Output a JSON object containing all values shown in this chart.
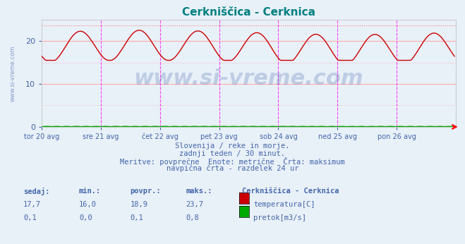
{
  "title": "Cerkniščica - Cerknica",
  "title_color": "#008080",
  "bg_color": "#e8f0f8",
  "plot_bg_color": "#e8f0f8",
  "ylabel": "",
  "xlabel": "",
  "ylim": [
    0,
    25
  ],
  "yticks": [
    0,
    10,
    20
  ],
  "x_labels": [
    "tor 20 avg",
    "sre 21 avg",
    "čet 22 avg",
    "pet 23 avg",
    "sob 24 avg",
    "ned 25 avg",
    "pon 26 avg"
  ],
  "n_points": 336,
  "temp_min": 16.0,
  "temp_max": 23.7,
  "temp_avg": 18.9,
  "temp_last": 17.7,
  "flow_min": 0.0,
  "flow_max": 0.8,
  "flow_avg": 0.1,
  "flow_last": 0.1,
  "temp_color": "#cc0000",
  "flow_color": "#00aa00",
  "max_line_color": "#ff8080",
  "grid_color": "#ffaaaa",
  "vline_color": "#ff00ff",
  "watermark_text": "www.si-vreme.com",
  "watermark_color": "#4466aa",
  "watermark_alpha": 0.25,
  "sub_text1": "Slovenija / reke in morje.",
  "sub_text2": "zadnji teden / 30 minut.",
  "sub_text3": "Meritve: povprečne  Enote: metrične  Črta: maksimum",
  "sub_text4": "navpična črta - razdelek 24 ur",
  "text_color": "#4466aa",
  "legend_header": "Cerkniščica - Cerknica",
  "legend_row1": [
    "17,7",
    "16,0",
    "18,9",
    "23,7",
    "temperatura[C]"
  ],
  "legend_row2": [
    "0,1",
    "0,0",
    "0,1",
    "0,8",
    "pretok[m3/s]"
  ],
  "col_headers": [
    "sedaj:",
    "min.:",
    "povpr.:",
    "maks.:"
  ],
  "side_text": "www.si-vreme.com"
}
